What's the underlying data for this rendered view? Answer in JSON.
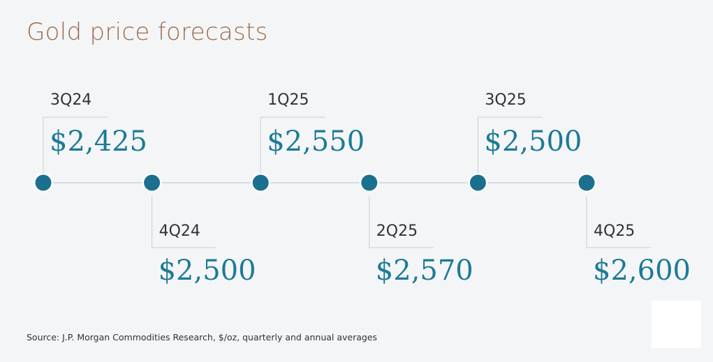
{
  "title": "Gold price forecasts",
  "source": "Source: J.P. Morgan Commodities Research, $/oz, quarterly and annual averages",
  "colors": {
    "title": "#9b6d4b",
    "dot": "#1b6f8f",
    "value": "#1d7a96",
    "quarter": "#2e3338",
    "line": "#d6dbe0",
    "bracket": "#c9ced3"
  },
  "chart_data": {
    "type": "timeline",
    "categories": [
      "3Q24",
      "4Q24",
      "1Q25",
      "2Q25",
      "3Q25",
      "4Q25"
    ],
    "values": [
      2425,
      2500,
      2550,
      2570,
      2500,
      2600
    ],
    "value_labels": [
      "$2,425",
      "$2,500",
      "$2,550",
      "$2,570",
      "$2,500",
      "$2,600"
    ],
    "title": "Gold price forecasts",
    "unit": "$/oz"
  }
}
